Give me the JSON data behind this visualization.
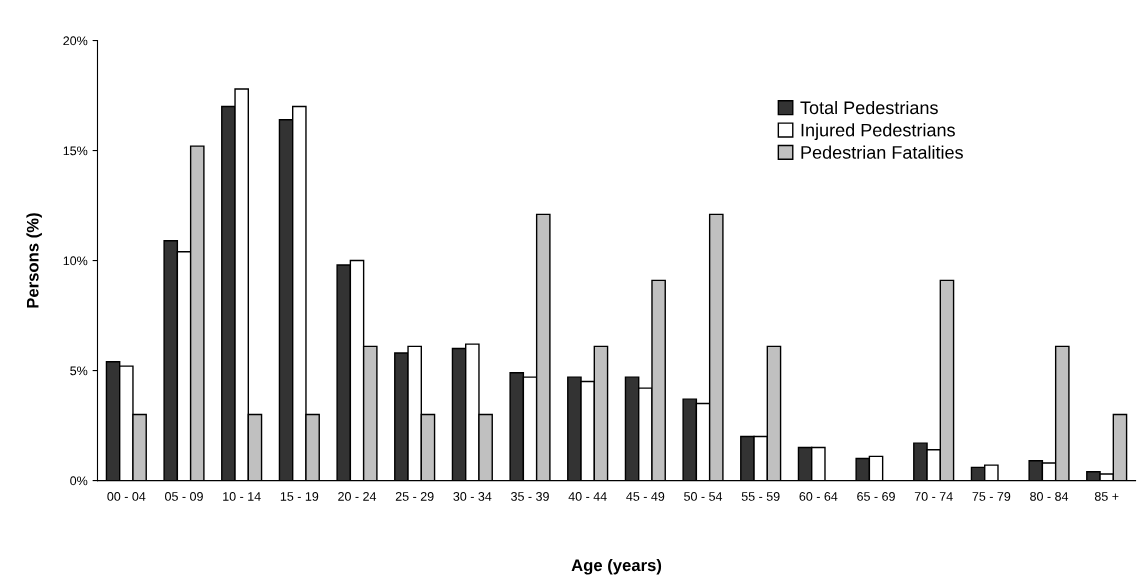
{
  "chart_data": {
    "type": "bar",
    "xlabel": "Age (years)",
    "ylabel": "Persons (%)",
    "categories": [
      "00 - 04",
      "05 - 09",
      "10 - 14",
      "15 - 19",
      "20 - 24",
      "25 - 29",
      "30 - 34",
      "35 - 39",
      "40 - 44",
      "45 - 49",
      "50 - 54",
      "55 - 59",
      "60 - 64",
      "65 - 69",
      "70 - 74",
      "75 - 79",
      "80 - 84",
      "85 +"
    ],
    "series": [
      {
        "name": "Total Pedestrians",
        "color": "#333333",
        "values": [
          5.4,
          10.9,
          17.0,
          16.4,
          9.8,
          5.8,
          6.0,
          4.9,
          4.7,
          4.7,
          3.7,
          2.0,
          1.5,
          1.0,
          1.7,
          0.6,
          0.9,
          0.4
        ]
      },
      {
        "name": "Injured Pedestrians",
        "color": "#ffffff",
        "values": [
          5.2,
          10.4,
          17.8,
          17.0,
          10.0,
          6.1,
          6.2,
          4.7,
          4.5,
          4.2,
          3.5,
          2.0,
          1.5,
          1.1,
          1.4,
          0.7,
          0.8,
          0.3
        ]
      },
      {
        "name": "Pedestrian Fatalities",
        "color": "#c0c0c0",
        "values": [
          3.0,
          15.2,
          3.0,
          3.0,
          6.1,
          3.0,
          3.0,
          12.1,
          6.1,
          9.1,
          12.1,
          6.1,
          null,
          null,
          9.1,
          null,
          6.1,
          3.0
        ]
      }
    ],
    "ylim": [
      0,
      20
    ],
    "yticks": [
      {
        "value": 0,
        "label": "0%"
      },
      {
        "value": 5,
        "label": "5%"
      },
      {
        "value": 10,
        "label": "10%"
      },
      {
        "value": 15,
        "label": "15%"
      },
      {
        "value": 20,
        "label": "20%"
      }
    ],
    "grid": false,
    "legend": "top right"
  }
}
